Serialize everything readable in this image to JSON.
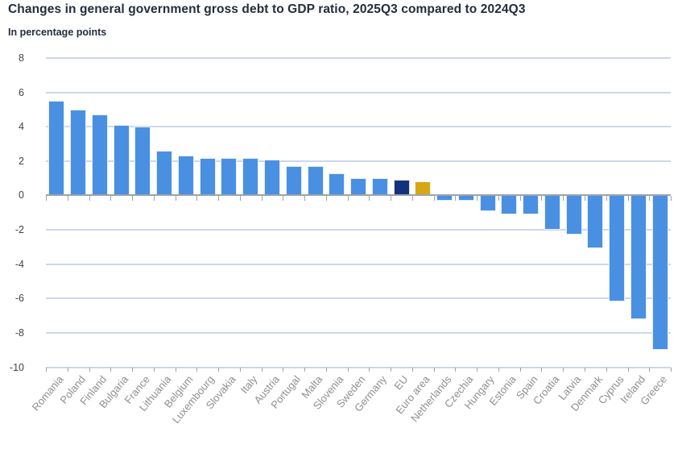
{
  "header": {
    "title": "Changes in general government gross debt to GDP ratio, 2025Q3 compared to 2024Q3",
    "subtitle": "In percentage points"
  },
  "chart_data": {
    "type": "bar",
    "title": "Changes in general government gross debt to GDP ratio, 2025Q3 compared to 2024Q3",
    "subtitle": "In percentage points",
    "xlabel": "",
    "ylabel": "In percentage points",
    "ylim": [
      -10,
      8
    ],
    "yticks": [
      8,
      6,
      4,
      2,
      0,
      -2,
      -4,
      -6,
      -8,
      -10
    ],
    "grid": true,
    "legend": "none",
    "categories": [
      "Romania",
      "Poland",
      "Finland",
      "Bulgaria",
      "France",
      "Lithuania",
      "Belgium",
      "Luxembourg",
      "Slovakia",
      "Italy",
      "Austria",
      "Portugal",
      "Malta",
      "Slovenia",
      "Sweden",
      "Germany",
      "EU",
      "Euro area",
      "Netherlands",
      "Czechia",
      "Hungary",
      "Estonia",
      "Spain",
      "Croatia",
      "Latvia",
      "Denmark",
      "Cyprus",
      "Ireland",
      "Greece"
    ],
    "values": [
      5.5,
      5.0,
      4.7,
      4.1,
      4.0,
      2.6,
      2.3,
      2.2,
      2.2,
      2.2,
      2.1,
      1.7,
      1.7,
      1.3,
      1.0,
      1.0,
      0.9,
      0.8,
      -0.3,
      -0.3,
      -0.9,
      -1.1,
      -1.1,
      -2.0,
      -2.3,
      -3.1,
      -6.2,
      -7.2,
      -9.0
    ],
    "colors": {
      "default_bar": "#4a90e2",
      "eu_bar": "#14317e",
      "euro_area_bar": "#d6a714",
      "gridline": "#cdd7e9",
      "zero_line": "#9aa3ad",
      "tick": "#9aa3ad",
      "y_label": "#3f454e",
      "x_label": "#8f8f8f",
      "title": "#232d3d"
    },
    "highlights": {
      "EU": "eu_bar",
      "Euro area": "euro_area_bar"
    }
  }
}
